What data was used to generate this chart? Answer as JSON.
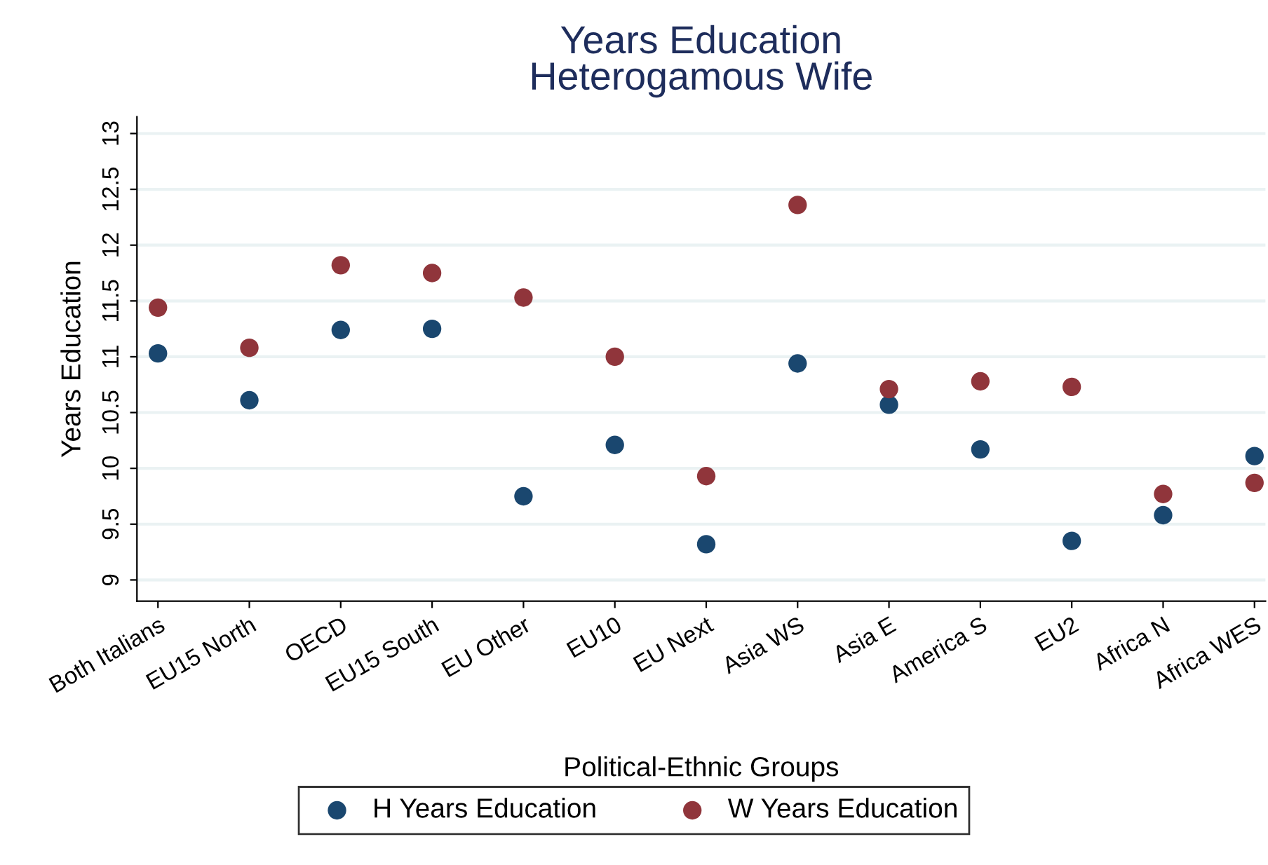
{
  "chart_data": {
    "type": "scatter",
    "title": "Years Education\nHeterogamous Wife",
    "xlabel": "Political-Ethnic Groups",
    "ylabel": "Years Education",
    "categories": [
      "Both Italians",
      "EU15 North",
      "OECD",
      "EU15 South",
      "EU Other",
      "EU10",
      "EU Next",
      "Asia WS",
      "Asia E",
      "America S",
      "EU2",
      "Africa N",
      "Africa WES"
    ],
    "series": [
      {
        "name": "H Years Education",
        "color": "#1a476f",
        "values": [
          11.03,
          10.61,
          11.24,
          11.25,
          9.75,
          10.21,
          9.32,
          10.94,
          10.57,
          10.17,
          9.35,
          9.58,
          10.11
        ]
      },
      {
        "name": "W Years Education",
        "color": "#90353b",
        "values": [
          11.44,
          11.08,
          11.82,
          11.75,
          11.53,
          11.0,
          9.93,
          12.36,
          10.71,
          10.78,
          10.73,
          9.77,
          9.87
        ]
      }
    ],
    "ylim": [
      8.81,
      13.15
    ],
    "yticks": [
      9,
      9.5,
      10,
      10.5,
      11,
      11.5,
      12,
      12.5,
      13
    ],
    "grid": "y",
    "legend": "bottom",
    "marker": "circle"
  }
}
